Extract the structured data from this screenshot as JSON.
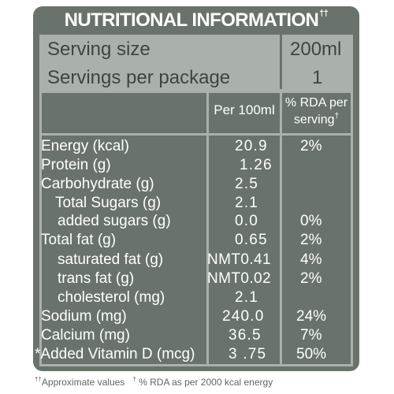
{
  "title": {
    "text": "NUTRITIONAL INFORMATION",
    "mark": "††"
  },
  "serving": [
    {
      "label": "Serving size",
      "value": "200ml"
    },
    {
      "label": "Servings per package",
      "value": "1"
    }
  ],
  "header": {
    "per100": "Per 100ml",
    "rda_line1": "% RDA per",
    "rda_line2": "serving",
    "rda_mark": "†"
  },
  "rows": [
    {
      "label": "Energy (kcal)",
      "per100": "20.9",
      "rda": "2%"
    },
    {
      "label": "Protein (g)",
      "per100": "1.26",
      "rda": ""
    },
    {
      "label": "Carbohydrate (g)",
      "per100": "2.5",
      "rda": ""
    },
    {
      "label": "Total Sugars (g)",
      "per100": "2.1",
      "rda": ""
    },
    {
      "label": "added sugars (g)",
      "per100": "0.0",
      "rda": "0%"
    },
    {
      "label": "Total fat (g)",
      "per100": "0.65",
      "rda": "2%"
    },
    {
      "label": "saturated fat (g)",
      "per100": "NMT0.41",
      "rda": "4%"
    },
    {
      "label": "trans fat (g)",
      "per100": "NMT0.02",
      "rda": "2%"
    },
    {
      "label": "cholesterol (mg)",
      "per100": "2.1",
      "rda": ""
    },
    {
      "label": "Sodium (mg)",
      "per100": "240.0",
      "rda": "24%"
    },
    {
      "label": "Calcium (mg)",
      "per100": "36.5",
      "rda": "7%"
    },
    {
      "label": "*Added Vitamin D (mcg)",
      "per100": "3 .75",
      "rda": "50%"
    }
  ],
  "footnote": {
    "mark1": "††",
    "text1": "Approximate values",
    "mark2": "†",
    "text2": "% RDA as per 2000 kcal energy"
  }
}
